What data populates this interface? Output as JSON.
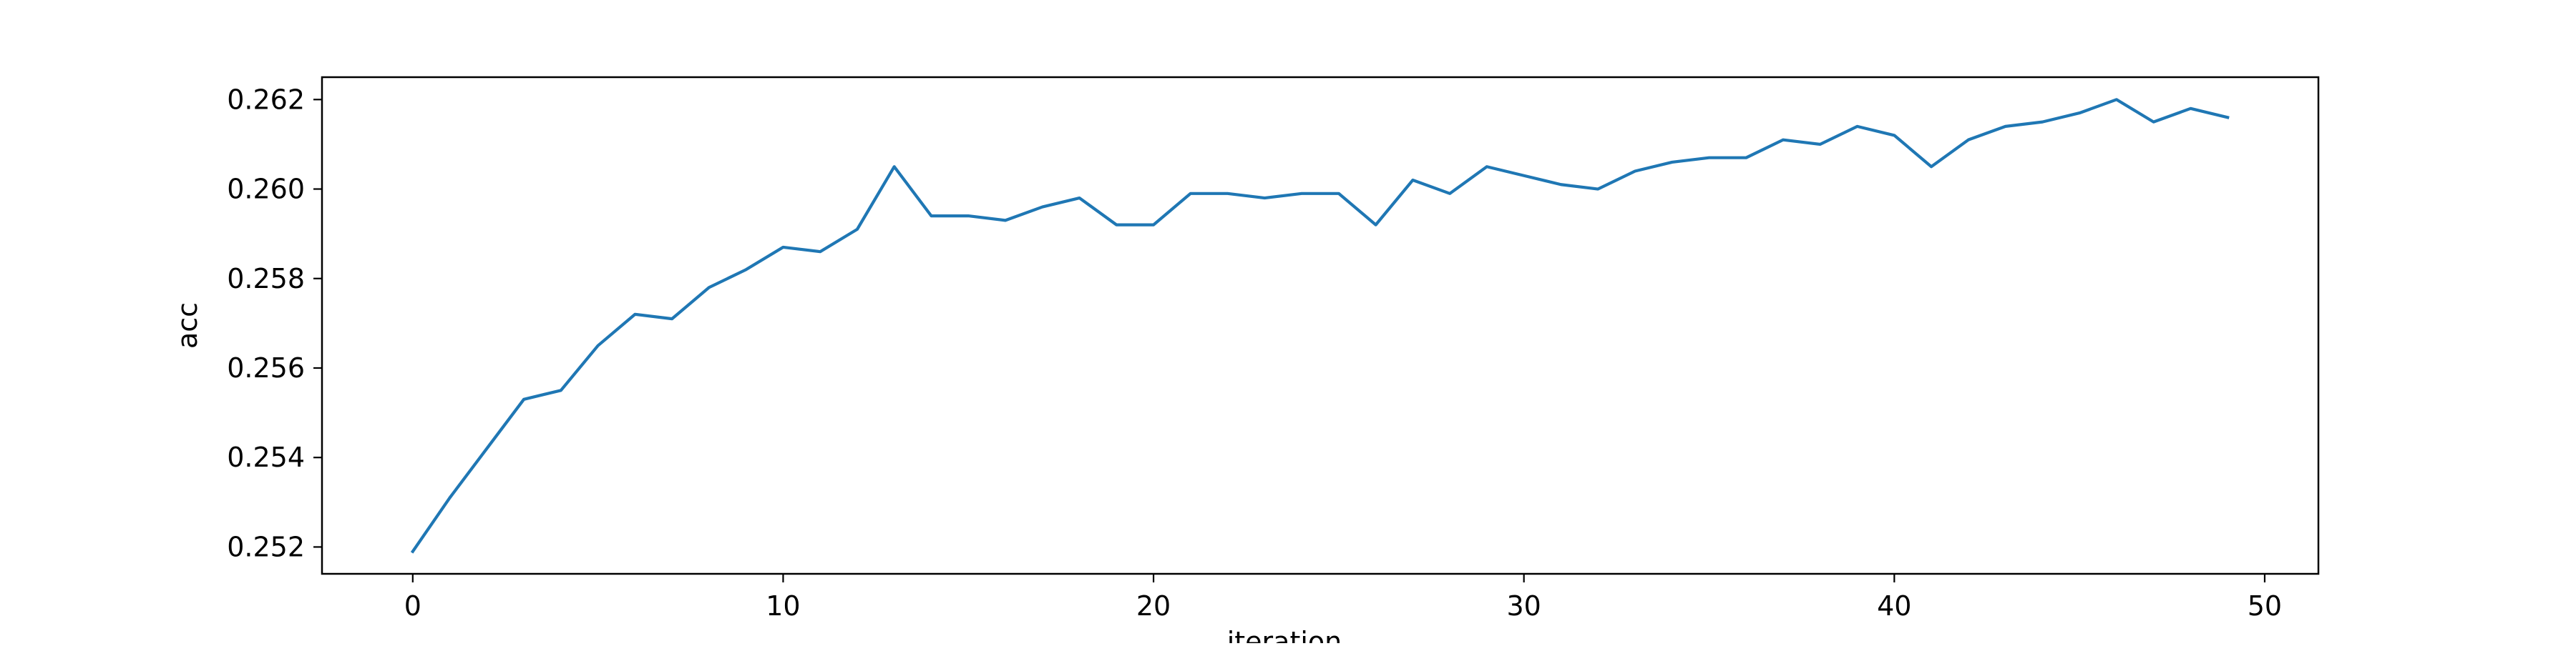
{
  "chart_data": {
    "type": "line",
    "title": "",
    "xlabel": "iteration",
    "ylabel": "acc",
    "xlim": [
      -2.45,
      51.45
    ],
    "ylim": [
      0.2514,
      0.2625
    ],
    "xticks": [
      0,
      10,
      20,
      30,
      40,
      50
    ],
    "yticks": [
      0.252,
      0.254,
      0.256,
      0.258,
      0.26,
      0.262
    ],
    "ytick_labels": [
      "0.252",
      "0.254",
      "0.256",
      "0.258",
      "0.260",
      "0.262"
    ],
    "grid": false,
    "legend": "none",
    "series": [
      {
        "color": "#1f77b4",
        "x": [
          0,
          1,
          2,
          3,
          4,
          5,
          6,
          7,
          8,
          9,
          10,
          11,
          12,
          13,
          14,
          15,
          16,
          17,
          18,
          19,
          20,
          21,
          22,
          23,
          24,
          25,
          26,
          27,
          28,
          29,
          30,
          31,
          32,
          33,
          34,
          35,
          36,
          37,
          38,
          39,
          40,
          41,
          42,
          43,
          44,
          45,
          46,
          47,
          48,
          49
        ],
        "values": [
          0.2519,
          0.2531,
          0.2542,
          0.2553,
          0.2555,
          0.2565,
          0.2572,
          0.2571,
          0.2578,
          0.2582,
          0.2587,
          0.2586,
          0.2591,
          0.2605,
          0.2594,
          0.2594,
          0.2593,
          0.2596,
          0.2598,
          0.2592,
          0.2592,
          0.2599,
          0.2599,
          0.2598,
          0.2599,
          0.2599,
          0.2592,
          0.2602,
          0.2599,
          0.2605,
          0.2603,
          0.2601,
          0.26,
          0.2604,
          0.2606,
          0.2607,
          0.2607,
          0.2611,
          0.261,
          0.2614,
          0.2612,
          0.2605,
          0.2611,
          0.2614,
          0.2615,
          0.2617,
          0.262,
          0.2615,
          0.2618,
          0.2616
        ]
      }
    ]
  }
}
